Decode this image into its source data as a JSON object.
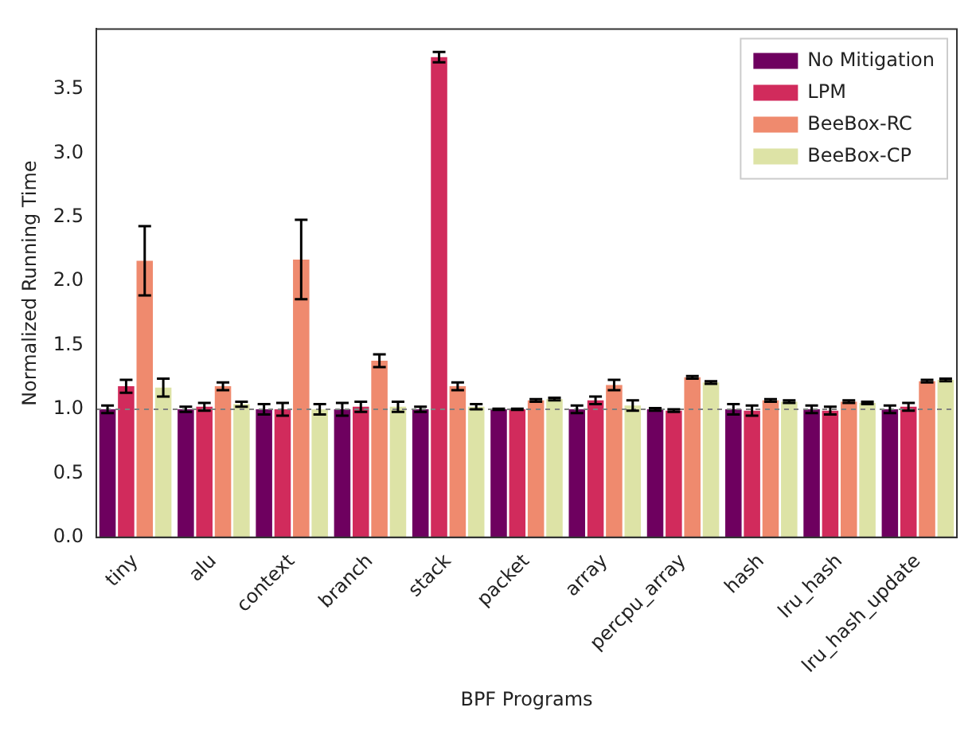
{
  "chart_data": {
    "type": "bar",
    "xlabel": "BPF Programs",
    "ylabel": "Normalized Running Time",
    "categories": [
      "tiny",
      "alu",
      "context",
      "branch",
      "stack",
      "packet",
      "array",
      "percpu_array",
      "hash",
      "lru_hash",
      "lru_hash_update"
    ],
    "series": [
      {
        "name": "No Mitigation",
        "color": "#6e005f",
        "values": [
          1.0,
          1.0,
          1.0,
          1.0,
          1.0,
          1.0,
          1.0,
          1.0,
          1.0,
          1.0,
          1.0
        ],
        "errors": [
          0.03,
          0.02,
          0.04,
          0.05,
          0.02,
          0.005,
          0.03,
          0.01,
          0.04,
          0.03,
          0.03
        ]
      },
      {
        "name": "LPM",
        "color": "#d12b5c",
        "values": [
          1.18,
          1.02,
          1.0,
          1.02,
          3.75,
          1.0,
          1.07,
          0.99,
          0.99,
          0.99,
          1.02
        ],
        "errors": [
          0.05,
          0.03,
          0.05,
          0.04,
          0.04,
          0.005,
          0.03,
          0.01,
          0.04,
          0.03,
          0.03
        ]
      },
      {
        "name": "BeeBox-RC",
        "color": "#ef8a6e",
        "values": [
          2.16,
          1.18,
          2.17,
          1.38,
          1.18,
          1.07,
          1.19,
          1.25,
          1.07,
          1.06,
          1.22
        ],
        "errors": [
          0.27,
          0.03,
          0.31,
          0.05,
          0.03,
          0.01,
          0.04,
          0.01,
          0.01,
          0.01,
          0.01
        ]
      },
      {
        "name": "BeeBox-CP",
        "color": "#dde3a6",
        "values": [
          1.17,
          1.04,
          1.0,
          1.02,
          1.02,
          1.08,
          1.03,
          1.21,
          1.06,
          1.05,
          1.23
        ],
        "errors": [
          0.07,
          0.02,
          0.04,
          0.04,
          0.02,
          0.01,
          0.04,
          0.01,
          0.01,
          0.01,
          0.01
        ]
      }
    ],
    "ylim": [
      0,
      3.97
    ],
    "yticks": [
      {
        "value": 0,
        "label": "0.0"
      },
      0.5,
      {
        "value": 1,
        "label": "1.0"
      },
      1.5,
      {
        "value": 2,
        "label": "2.0"
      },
      2.5,
      {
        "value": 3,
        "label": "3.0"
      },
      3.5
    ],
    "ref_lines": [
      {
        "axis": "y",
        "value": 1.0,
        "color": "#808080",
        "line_style": "dashed"
      }
    ],
    "legend": "top right",
    "grid": false
  }
}
